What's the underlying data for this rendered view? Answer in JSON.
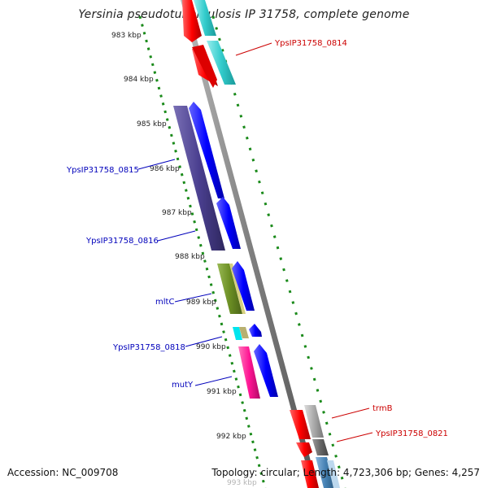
{
  "title": "Yersinia pseudotuberculosis IP 31758, complete genome",
  "footer": {
    "accession": "Accession: NC_009708",
    "summary": "Topology: circular; Length: 4,723,306 bp; Genes: 4,257"
  },
  "ticks": [
    {
      "label": "983 kbp"
    },
    {
      "label": "984 kbp"
    },
    {
      "label": "985 kbp"
    },
    {
      "label": "986 kbp"
    },
    {
      "label": "987 kbp"
    },
    {
      "label": "988 kbp"
    },
    {
      "label": "989 kbp"
    },
    {
      "label": "990 kbp"
    },
    {
      "label": "991 kbp"
    },
    {
      "label": "992 kbp"
    },
    {
      "label": "993 kbp"
    }
  ],
  "genes": [
    {
      "label": "YpsIP31758_0814",
      "color": "#cc0000"
    },
    {
      "label": "YpsIP31758_0815",
      "color": "#0000bb"
    },
    {
      "label": "YpsIP31758_0816",
      "color": "#0000bb"
    },
    {
      "label": "mltC",
      "color": "#0000bb"
    },
    {
      "label": "YpsIP31758_0818",
      "color": "#0000bb"
    },
    {
      "label": "mutY",
      "color": "#0000bb"
    },
    {
      "label": "trmB",
      "color": "#cc0000"
    },
    {
      "label": "YpsIP31758_0821",
      "color": "#cc0000"
    }
  ],
  "colors": {
    "cds_forward": "#ff0000",
    "cds_reverse": "#0000ff",
    "backbone": "#808080",
    "gc_ticks": "#1a8a1a",
    "cog_cyan": "#33cccc",
    "cog_purple": "#4a3f8f",
    "cog_olive": "#6b8e23",
    "cog_pink": "#ff1493",
    "cog_gray": "#aaaaaa"
  }
}
